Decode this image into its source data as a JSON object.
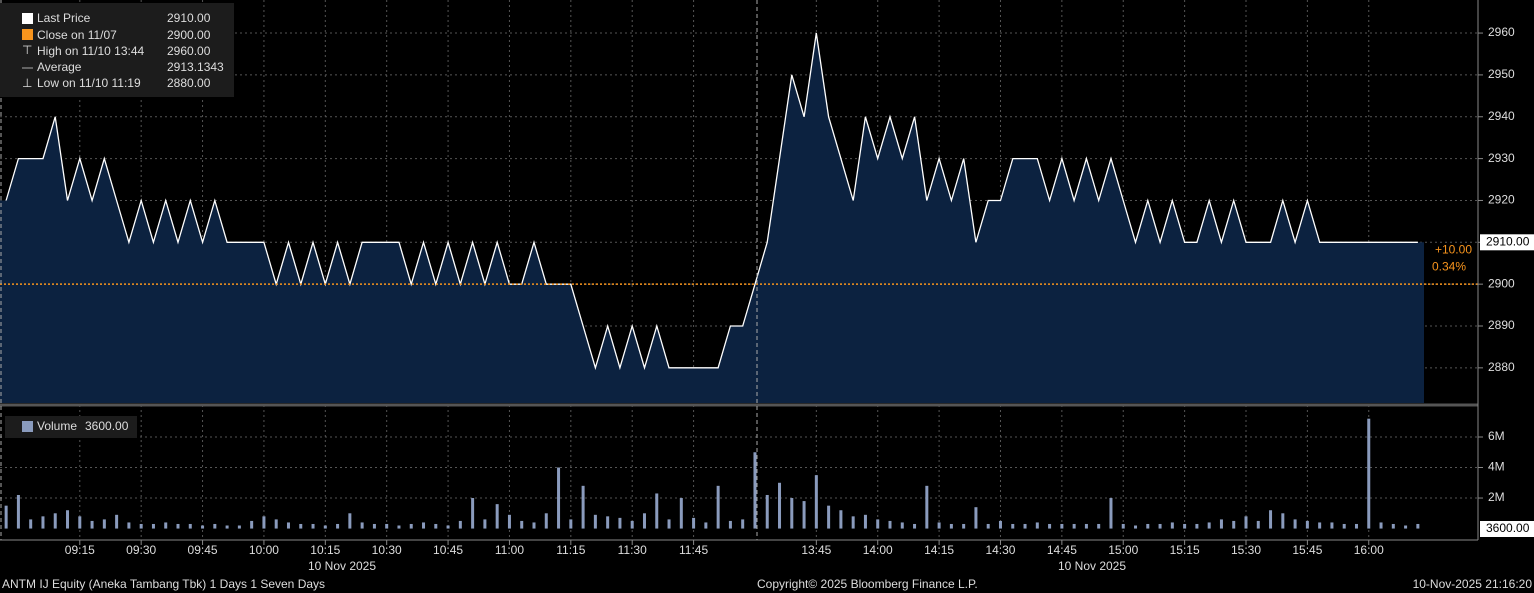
{
  "chart_data": [
    {
      "type": "area",
      "legend": [
        {
          "name": "Last Price",
          "value": {
            "value": 2910,
            "label": "2910.00"
          },
          "color": "#ffffff"
        },
        {
          "name": "Close on 11/07",
          "value": {
            "value": 2900,
            "label": "2900.00"
          },
          "color": "#f7941d"
        },
        {
          "name": "High on 11/10 13:44",
          "value": {
            "value": 2960,
            "label": "2960.00"
          },
          "color": "#aaaaaa"
        },
        {
          "name": "Average",
          "value": 2913.1343,
          "color": "#aaaaaa"
        },
        {
          "name": "Low on 11/10 11:19",
          "value": {
            "value": 2880,
            "label": "2880.00"
          },
          "color": "#aaaaaa"
        }
      ],
      "change": {
        "value": 10,
        "label": "+10.00"
      },
      "change_percent": {
        "value": 0.34,
        "label": "0.34%"
      },
      "categories": [
        null,
        null,
        null,
        null,
        null,
        null,
        "09:15",
        null,
        null,
        null,
        null,
        "09:30",
        null,
        null,
        null,
        null,
        "09:45",
        null,
        null,
        null,
        null,
        "10:00",
        null,
        null,
        null,
        null,
        "10:15",
        null,
        null,
        null,
        null,
        "10:30",
        null,
        null,
        null,
        null,
        "10:45",
        null,
        null,
        null,
        null,
        "11:00",
        null,
        null,
        null,
        null,
        "11:15",
        null,
        null,
        null,
        null,
        "11:30",
        null,
        null,
        null,
        null,
        "11:45",
        null,
        null,
        null,
        null,
        null,
        null,
        null,
        null,
        null,
        "13:45",
        null,
        null,
        null,
        null,
        "14:00",
        null,
        null,
        null,
        null,
        "14:15",
        null,
        null,
        null,
        null,
        "14:30",
        null,
        null,
        null,
        null,
        "14:45",
        null,
        null,
        null,
        null,
        "15:00",
        null,
        null,
        null,
        null,
        "15:15",
        null,
        null,
        null,
        null,
        "15:30",
        null,
        null,
        null,
        null,
        "15:45",
        null,
        null,
        null,
        null,
        "16:00",
        null,
        null,
        null,
        null
      ],
      "series": [
        {
          "name": "Last Price",
          "color": "#ffffff",
          "fill": "#0c2240",
          "values": [
            2920,
            2930,
            2930,
            2930,
            2940,
            2920,
            2930,
            2920,
            2930,
            2920,
            2910,
            2920,
            2910,
            2920,
            2910,
            2920,
            2910,
            2920,
            2910,
            2910,
            2910,
            2910,
            2900,
            2910,
            2900,
            2910,
            2900,
            2910,
            2900,
            2910,
            2910,
            2910,
            2910,
            2900,
            2910,
            2900,
            2910,
            2900,
            2910,
            2900,
            2910,
            2900,
            2900,
            2910,
            2900,
            2900,
            2900,
            2890,
            2880,
            2890,
            2880,
            2890,
            2880,
            2890,
            2880,
            2880,
            2880,
            2880,
            2880,
            2890,
            2890,
            2900,
            2910,
            2930,
            2950,
            2940,
            2960,
            2940,
            2930,
            2920,
            2940,
            2930,
            2940,
            2930,
            2940,
            2920,
            2930,
            2920,
            2930,
            2910,
            2920,
            2920,
            2930,
            2930,
            2930,
            2920,
            2930,
            2920,
            2930,
            2920,
            2930,
            2920,
            2910,
            2920,
            2910,
            2920,
            2910,
            2910,
            2920,
            2910,
            2920,
            2910,
            2910,
            2910,
            2920,
            2910,
            2920,
            2910,
            2910,
            2910,
            2910,
            2910,
            2910,
            2910,
            2910,
            2910
          ]
        }
      ],
      "ylim": [
        2871.6,
        2967.9
      ],
      "yticks": [
        2880,
        2890,
        2900,
        2910,
        2920,
        2930,
        2940,
        2950,
        2960
      ],
      "grid": true,
      "date_labels": [
        "10 Nov 2025",
        "10 Nov 2025"
      ]
    },
    {
      "type": "bar",
      "legend": [
        {
          "name": "Volume",
          "value": {
            "value": 3600,
            "label": "3600.00"
          },
          "color": "#8a9bbd"
        }
      ],
      "color": "#8a9bbd",
      "values": [
        1.5,
        2.2,
        0.6,
        0.8,
        1.0,
        1.2,
        0.8,
        0.5,
        0.6,
        0.9,
        0.4,
        0.3,
        0.3,
        0.4,
        0.3,
        0.3,
        0.2,
        0.3,
        0.2,
        0.2,
        0.5,
        0.8,
        0.6,
        0.4,
        0.3,
        0.3,
        0.2,
        0.3,
        1.0,
        0.4,
        0.3,
        0.3,
        0.2,
        0.3,
        0.4,
        0.3,
        0.2,
        0.5,
        2.0,
        0.6,
        1.6,
        0.9,
        0.5,
        0.4,
        1.0,
        4.0,
        0.6,
        2.8,
        0.9,
        0.8,
        0.7,
        0.5,
        1.0,
        2.3,
        0.6,
        2.0,
        0.7,
        0.4,
        2.8,
        0.5,
        0.6,
        5.0,
        2.2,
        3.0,
        2.0,
        1.8,
        3.5,
        1.5,
        1.2,
        0.8,
        0.9,
        0.6,
        0.5,
        0.4,
        0.3,
        2.8,
        0.4,
        0.3,
        0.3,
        1.4,
        0.3,
        0.5,
        0.3,
        0.3,
        0.4,
        0.3,
        0.3,
        0.3,
        0.3,
        0.3,
        2.0,
        0.3,
        0.2,
        0.3,
        0.3,
        0.4,
        0.3,
        0.3,
        0.4,
        0.6,
        0.5,
        0.8,
        0.5,
        1.2,
        1.0,
        0.6,
        0.5,
        0.4,
        0.4,
        0.3,
        0.3,
        7.2,
        0.4,
        0.3,
        0.2,
        0.3
      ],
      "ylim": [
        -0.75,
        7.9
      ],
      "yticks": [
        {
          "value": 2,
          "label": "2M"
        },
        {
          "value": 4,
          "label": "4M"
        },
        {
          "value": 6,
          "label": "6M"
        }
      ],
      "grid": true
    }
  ],
  "footer": {
    "left": "ANTM IJ Equity (Aneka Tambang Tbk) 1 Days 1 Seven Days",
    "center": "Copyright© 2025 Bloomberg Finance L.P.",
    "right": "10-Nov-2025 21:16:20"
  }
}
